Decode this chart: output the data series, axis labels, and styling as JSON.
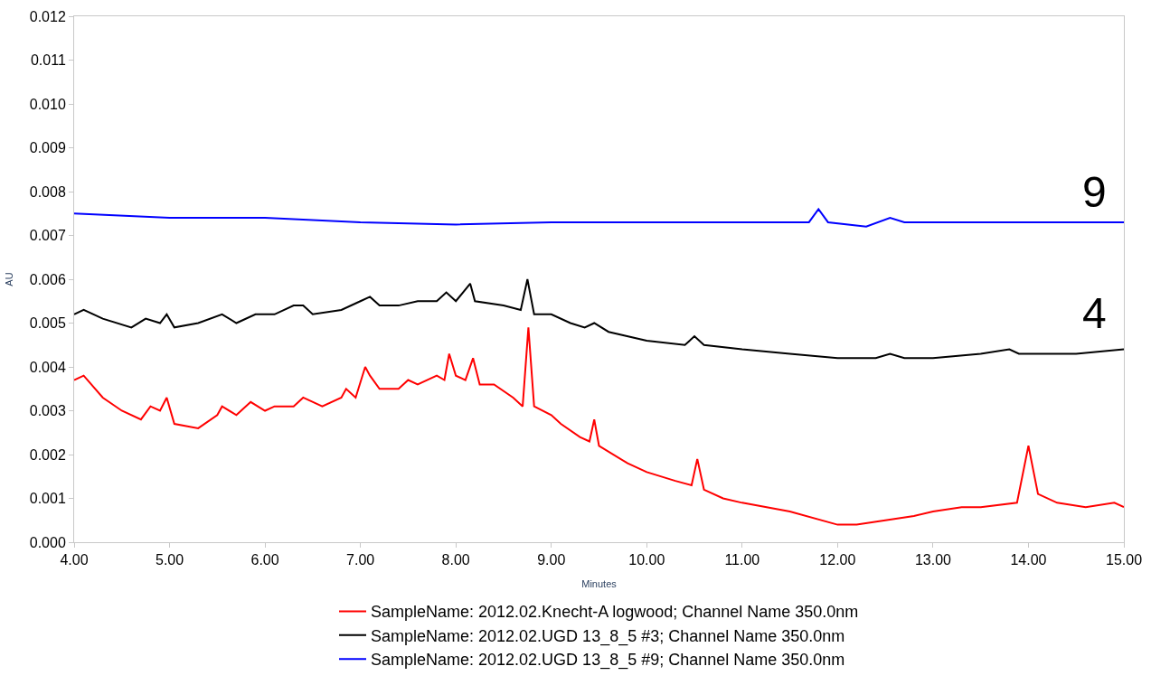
{
  "chart_data": {
    "type": "line",
    "xlabel": "Minutes",
    "ylabel": "AU",
    "xlim": [
      4,
      15
    ],
    "ylim": [
      0,
      0.012
    ],
    "xticks": [
      {
        "value": 4,
        "label": "4.00"
      },
      {
        "value": 5,
        "label": "5.00"
      },
      {
        "value": 6,
        "label": "6.00"
      },
      {
        "value": 7,
        "label": "7.00"
      },
      {
        "value": 8,
        "label": "8.00"
      },
      {
        "value": 9,
        "label": "9.00"
      },
      {
        "value": 10,
        "label": "10.00"
      },
      {
        "value": 11,
        "label": "11.00"
      },
      {
        "value": 12,
        "label": "12.00"
      },
      {
        "value": 13,
        "label": "13.00"
      },
      {
        "value": 14,
        "label": "14.00"
      },
      {
        "value": 15,
        "label": "15.00"
      }
    ],
    "yticks": [
      {
        "value": 0,
        "label": "0.000"
      },
      {
        "value": 0.001,
        "label": "0.001"
      },
      {
        "value": 0.002,
        "label": "0.002"
      },
      {
        "value": 0.003,
        "label": "0.003"
      },
      {
        "value": 0.004,
        "label": "0.004"
      },
      {
        "value": 0.005,
        "label": "0.005"
      },
      {
        "value": 0.006,
        "label": "0.006"
      },
      {
        "value": 0.007,
        "label": "0.007"
      },
      {
        "value": 0.008,
        "label": "0.008"
      },
      {
        "value": 0.009,
        "label": "0.009"
      },
      {
        "value": 0.01,
        "label": "0.010"
      },
      {
        "value": 0.011,
        "label": "0.011"
      },
      {
        "value": 0.012,
        "label": "0.012"
      }
    ],
    "legend": "bottom",
    "marker": "none",
    "line_style": "solid",
    "annotations": [
      "9",
      "4"
    ],
    "series": [
      {
        "name": "SampleName: 2012.02.Knecht-A logwood; Channel Name 350.0nm",
        "color": "#ff0000",
        "x": [
          4.0,
          4.1,
          4.3,
          4.5,
          4.7,
          4.8,
          4.9,
          4.97,
          5.05,
          5.3,
          5.5,
          5.55,
          5.7,
          5.85,
          6.0,
          6.1,
          6.3,
          6.4,
          6.6,
          6.8,
          6.85,
          6.95,
          7.05,
          7.1,
          7.2,
          7.4,
          7.5,
          7.6,
          7.8,
          7.88,
          7.93,
          8.0,
          8.1,
          8.18,
          8.25,
          8.4,
          8.6,
          8.7,
          8.76,
          8.82,
          9.0,
          9.1,
          9.3,
          9.4,
          9.45,
          9.5,
          9.8,
          10.0,
          10.3,
          10.47,
          10.53,
          10.6,
          10.8,
          11.0,
          11.5,
          12.0,
          12.2,
          12.5,
          12.8,
          13.0,
          13.3,
          13.5,
          13.88,
          14.0,
          14.1,
          14.3,
          14.6,
          14.9,
          15.0
        ],
        "values": [
          0.0037,
          0.0038,
          0.0033,
          0.003,
          0.0028,
          0.0031,
          0.003,
          0.0033,
          0.0027,
          0.0026,
          0.0029,
          0.0031,
          0.0029,
          0.0032,
          0.003,
          0.0031,
          0.0031,
          0.0033,
          0.0031,
          0.0033,
          0.0035,
          0.0033,
          0.004,
          0.0038,
          0.0035,
          0.0035,
          0.0037,
          0.0036,
          0.0038,
          0.0037,
          0.0043,
          0.0038,
          0.0037,
          0.0042,
          0.0036,
          0.0036,
          0.0033,
          0.0031,
          0.0049,
          0.0031,
          0.0029,
          0.0027,
          0.0024,
          0.0023,
          0.0028,
          0.0022,
          0.0018,
          0.0016,
          0.0014,
          0.0013,
          0.0019,
          0.0012,
          0.001,
          0.0009,
          0.0007,
          0.0004,
          0.0004,
          0.0005,
          0.0006,
          0.0007,
          0.0008,
          0.0008,
          0.0009,
          0.0022,
          0.0011,
          0.0009,
          0.0008,
          0.0009,
          0.0008
        ]
      },
      {
        "name": "SampleName: 2012.02.UGD 13_8_5 #3; Channel Name 350.0nm",
        "color": "#000000",
        "x": [
          4.0,
          4.1,
          4.3,
          4.6,
          4.75,
          4.9,
          4.97,
          5.05,
          5.3,
          5.55,
          5.7,
          5.9,
          6.1,
          6.3,
          6.4,
          6.5,
          6.8,
          7.0,
          7.1,
          7.2,
          7.4,
          7.6,
          7.8,
          7.9,
          8.0,
          8.15,
          8.2,
          8.5,
          8.68,
          8.75,
          8.82,
          9.0,
          9.2,
          9.35,
          9.45,
          9.6,
          10.0,
          10.4,
          10.5,
          10.6,
          11.0,
          11.5,
          12.0,
          12.4,
          12.55,
          12.7,
          13.0,
          13.5,
          13.8,
          13.9,
          14.5,
          15.0
        ],
        "values": [
          0.0052,
          0.0053,
          0.0051,
          0.0049,
          0.0051,
          0.005,
          0.0052,
          0.0049,
          0.005,
          0.0052,
          0.005,
          0.0052,
          0.0052,
          0.0054,
          0.0054,
          0.0052,
          0.0053,
          0.0055,
          0.0056,
          0.0054,
          0.0054,
          0.0055,
          0.0055,
          0.0057,
          0.0055,
          0.0059,
          0.0055,
          0.0054,
          0.0053,
          0.006,
          0.0052,
          0.0052,
          0.005,
          0.0049,
          0.005,
          0.0048,
          0.0046,
          0.0045,
          0.0047,
          0.0045,
          0.0044,
          0.0043,
          0.0042,
          0.0042,
          0.0043,
          0.0042,
          0.0042,
          0.0043,
          0.0044,
          0.0043,
          0.0043,
          0.0044
        ]
      },
      {
        "name": "SampleName: 2012.02.UGD 13_8_5 #9; Channel Name 350.0nm",
        "color": "#0000ff",
        "x": [
          4.0,
          5.0,
          6.0,
          7.0,
          8.0,
          9.0,
          10.0,
          11.0,
          11.7,
          11.8,
          11.9,
          12.3,
          12.55,
          12.7,
          13.5,
          14.5,
          15.0
        ],
        "values": [
          0.0075,
          0.0074,
          0.0074,
          0.0073,
          0.00725,
          0.0073,
          0.0073,
          0.0073,
          0.0073,
          0.0076,
          0.0073,
          0.0072,
          0.0074,
          0.0073,
          0.0073,
          0.0073,
          0.0073
        ]
      }
    ]
  }
}
